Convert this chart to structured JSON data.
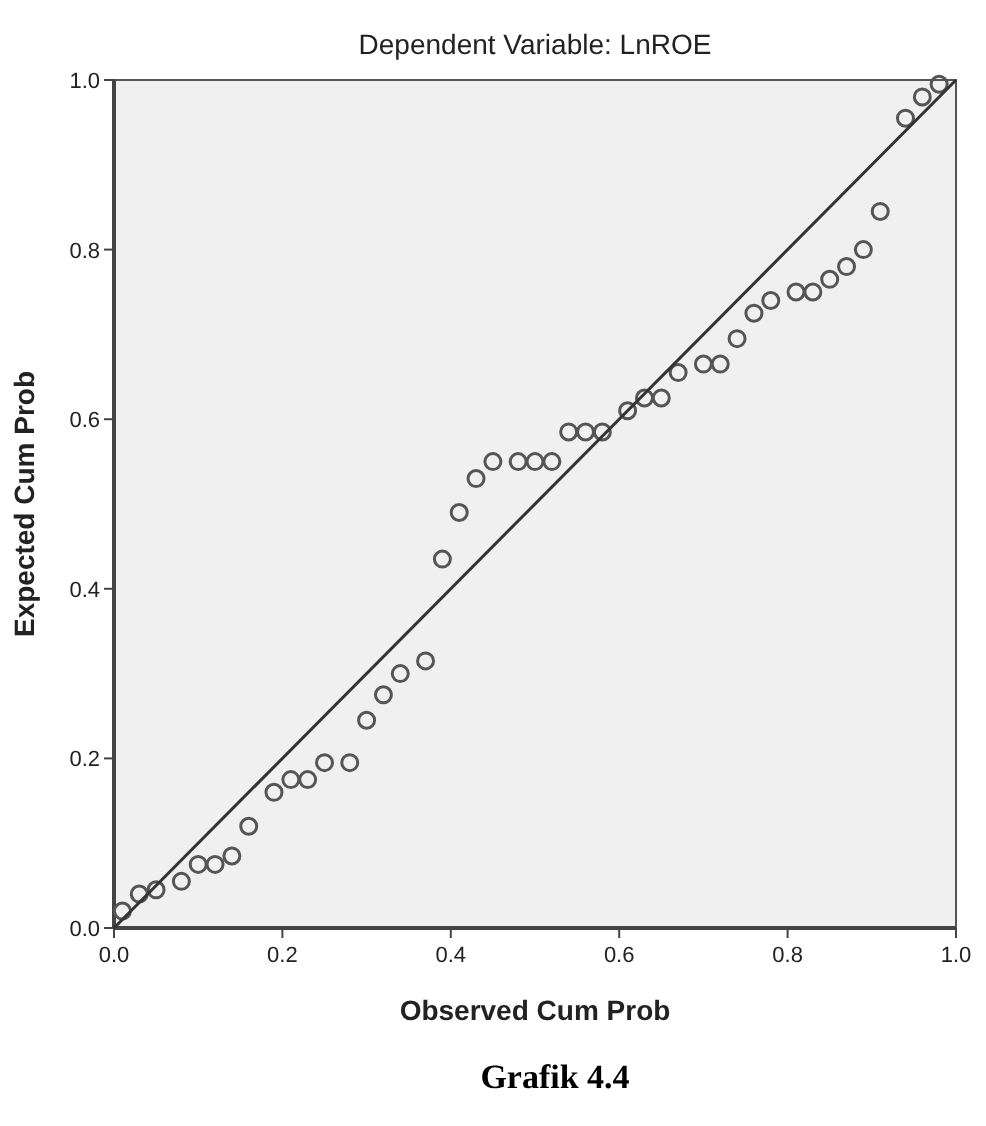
{
  "chart_data": {
    "type": "scatter",
    "title": "Dependent Variable: LnROE",
    "xlabel": "Observed Cum Prob",
    "ylabel": "Expected Cum Prob",
    "annotations": [
      "Grafik 4.4"
    ],
    "xlim": [
      0,
      1
    ],
    "ylim": [
      0,
      1
    ],
    "xticks": [
      {
        "value": 0,
        "label": "0.0"
      },
      {
        "value": 0.2,
        "label": "0.2"
      },
      {
        "value": 0.4,
        "label": "0.4"
      },
      {
        "value": 0.6,
        "label": "0.6"
      },
      {
        "value": 0.8,
        "label": "0.8"
      },
      {
        "value": 1,
        "label": "1.0"
      }
    ],
    "yticks": [
      {
        "value": 0,
        "label": "0.0"
      },
      {
        "value": 0.2,
        "label": "0.2"
      },
      {
        "value": 0.4,
        "label": "0.4"
      },
      {
        "value": 0.6,
        "label": "0.6"
      },
      {
        "value": 0.8,
        "label": "0.8"
      },
      {
        "value": 1,
        "label": "1.0"
      }
    ],
    "grid": false,
    "series": [
      {
        "color": "#555555",
        "marker": "circle",
        "x": [
          0.01,
          0.03,
          0.05,
          0.08,
          0.1,
          0.12,
          0.14,
          0.16,
          0.19,
          0.21,
          0.23,
          0.25,
          0.28,
          0.3,
          0.32,
          0.34,
          0.37,
          0.39,
          0.41,
          0.43,
          0.45,
          0.48,
          0.5,
          0.52,
          0.54,
          0.56,
          0.58,
          0.61,
          0.63,
          0.65,
          0.67,
          0.7,
          0.72,
          0.74,
          0.76,
          0.78,
          0.81,
          0.83,
          0.85,
          0.87,
          0.89,
          0.91,
          0.94,
          0.96,
          0.98
        ],
        "values": [
          0.02,
          0.04,
          0.045,
          0.055,
          0.075,
          0.075,
          0.085,
          0.12,
          0.16,
          0.175,
          0.175,
          0.195,
          0.195,
          0.245,
          0.275,
          0.3,
          0.315,
          0.435,
          0.49,
          0.53,
          0.55,
          0.55,
          0.55,
          0.55,
          0.585,
          0.585,
          0.585,
          0.61,
          0.625,
          0.625,
          0.655,
          0.665,
          0.665,
          0.695,
          0.725,
          0.74,
          0.75,
          0.75,
          0.765,
          0.78,
          0.8,
          0.845,
          0.955,
          0.98,
          0.995
        ]
      },
      {
        "type": "line",
        "color": "#333333",
        "marker": "none",
        "line_style": "solid",
        "x": [
          0,
          1
        ],
        "values": [
          0,
          1
        ]
      }
    ]
  }
}
